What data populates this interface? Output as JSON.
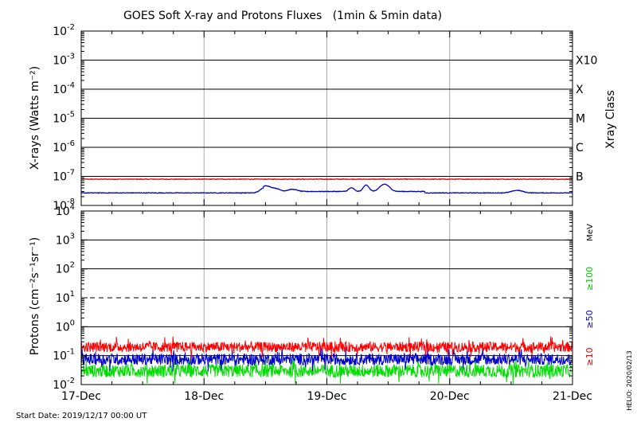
{
  "chart_data": [
    {
      "type": "line",
      "title": "GOES Soft X-ray and Protons Fluxes   (1min & 5min data)",
      "ylabel": "X-rays (Watts m⁻²)",
      "yscale": "log",
      "ylim": [
        1e-08,
        0.01
      ],
      "ytick_labels": [
        {
          "base": "10",
          "exp": "-8"
        },
        {
          "base": "10",
          "exp": "-7"
        },
        {
          "base": "10",
          "exp": "-6"
        },
        {
          "base": "10",
          "exp": "-5"
        },
        {
          "base": "10",
          "exp": "-4"
        },
        {
          "base": "10",
          "exp": "-3"
        },
        {
          "base": "10",
          "exp": "-2"
        }
      ],
      "x_ticks": [
        "17-Dec",
        "18-Dec",
        "19-Dec",
        "20-Dec",
        "21-Dec"
      ],
      "xlim_days": [
        0,
        4
      ],
      "right_axis_label": "Xray Class",
      "classes": [
        {
          "label": "B",
          "value": 1e-07
        },
        {
          "label": "C",
          "value": 1e-06
        },
        {
          "label": "M",
          "value": 1e-05
        },
        {
          "label": "X",
          "value": 0.0001
        },
        {
          "label": "X10",
          "value": 0.001
        }
      ],
      "series": [
        {
          "color": "#dd0000",
          "baseline": 8e-08,
          "noise": 0.04,
          "bumps": []
        },
        {
          "color": "#0000cc",
          "baseline": 2.7e-08,
          "noise": 0.05,
          "bumps": [
            {
              "day": 1.5,
              "peak": 4.2e-08,
              "width": 0.05
            },
            {
              "day": 1.58,
              "peak": 3.4e-08,
              "width": 0.05
            },
            {
              "day": 1.72,
              "peak": 3.2e-08,
              "width": 0.05
            },
            {
              "day": 2.2,
              "peak": 3.6e-08,
              "width": 0.03
            },
            {
              "day": 2.32,
              "peak": 4.5e-08,
              "width": 0.03
            },
            {
              "day": 2.47,
              "peak": 4.8e-08,
              "width": 0.05
            },
            {
              "day": 3.55,
              "peak": 3.3e-08,
              "width": 0.06
            }
          ]
        }
      ],
      "grid": true
    },
    {
      "type": "line",
      "ylabel": "Protons (cm⁻²s⁻¹sr⁻¹)",
      "yscale": "log",
      "ylim": [
        0.01,
        10000
      ],
      "ytick_labels": [
        {
          "base": "10",
          "exp": "-2"
        },
        {
          "base": "10",
          "exp": "-1"
        },
        {
          "base": "10",
          "exp": "0"
        },
        {
          "base": "10",
          "exp": "1"
        },
        {
          "base": "10",
          "exp": "2"
        },
        {
          "base": "10",
          "exp": "3"
        },
        {
          "base": "10",
          "exp": "4"
        }
      ],
      "threshold_line": 10,
      "unit_label": "MeV",
      "series": [
        {
          "name": "≥10",
          "color": "#ff0000",
          "baseline": 0.2,
          "noise": 0.35
        },
        {
          "name": "≥50",
          "color": "#0000cc",
          "baseline": 0.075,
          "noise": 0.4
        },
        {
          "name": "≥100",
          "color": "#00dd00",
          "baseline": 0.03,
          "noise": 0.45
        }
      ],
      "grid": true
    }
  ],
  "footer": {
    "start_date": "Start Date: 2019/12/17 00:00 UT",
    "credit": "HELIO: 2020/02/13"
  }
}
